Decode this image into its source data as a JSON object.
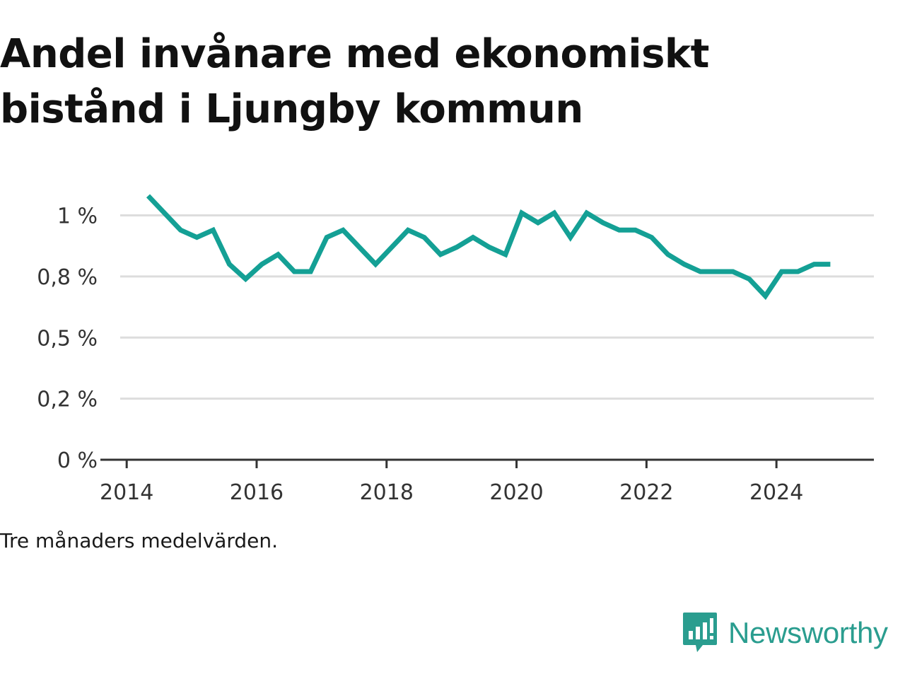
{
  "title": "Andel invånare med ekonomiskt bistånd i Ljungby kommun",
  "note": "Tre månaders medelvärden.",
  "brand": {
    "name": "Newsworthy",
    "icon": "newsworthy-logo-icon",
    "color": "#2a9d8f"
  },
  "chart_data": {
    "type": "line",
    "title": "Andel invånare med ekonomiskt bistånd i Ljungby kommun",
    "xlabel": "",
    "ylabel": "",
    "xlim": [
      2013.9,
      2025.5
    ],
    "ylim": [
      0,
      1.1
    ],
    "grid": true,
    "line_color": "#14a095",
    "x_ticks": [
      {
        "value": 2014,
        "label": "2014"
      },
      {
        "value": 2016,
        "label": "2016"
      },
      {
        "value": 2018,
        "label": "2018"
      },
      {
        "value": 2020,
        "label": "2020"
      },
      {
        "value": 2022,
        "label": "2022"
      },
      {
        "value": 2024,
        "label": "2024"
      }
    ],
    "y_ticks": [
      {
        "value": 0,
        "label": "0 %"
      },
      {
        "value": 0.25,
        "label": "0,2 %"
      },
      {
        "value": 0.5,
        "label": "0,5 %"
      },
      {
        "value": 0.75,
        "label": "0,8 %"
      },
      {
        "value": 1.0,
        "label": "1 %"
      }
    ],
    "series": [
      {
        "x": [
          2014.33,
          2014.58,
          2014.83,
          2015.08,
          2015.33,
          2015.58,
          2015.83,
          2016.08,
          2016.33,
          2016.58,
          2016.83,
          2017.08,
          2017.33,
          2017.58,
          2017.83,
          2018.08,
          2018.33,
          2018.58,
          2018.83,
          2019.08,
          2019.33,
          2019.58,
          2019.83,
          2020.08,
          2020.33,
          2020.58,
          2020.83,
          2021.08,
          2021.33,
          2021.58,
          2021.83,
          2022.08,
          2022.33,
          2022.58,
          2022.83,
          2023.08,
          2023.33,
          2023.58,
          2023.83,
          2024.08,
          2024.33,
          2024.58,
          2024.83
        ],
        "values": [
          1.08,
          1.01,
          0.94,
          0.91,
          0.94,
          0.8,
          0.74,
          0.8,
          0.84,
          0.77,
          0.77,
          0.91,
          0.94,
          0.87,
          0.8,
          0.87,
          0.94,
          0.91,
          0.84,
          0.87,
          0.91,
          0.87,
          0.84,
          1.01,
          0.97,
          1.01,
          0.91,
          1.01,
          0.97,
          0.94,
          0.94,
          0.91,
          0.84,
          0.8,
          0.77,
          0.77,
          0.77,
          0.74,
          0.67,
          0.77,
          0.77,
          0.8,
          0.8
        ]
      }
    ]
  }
}
